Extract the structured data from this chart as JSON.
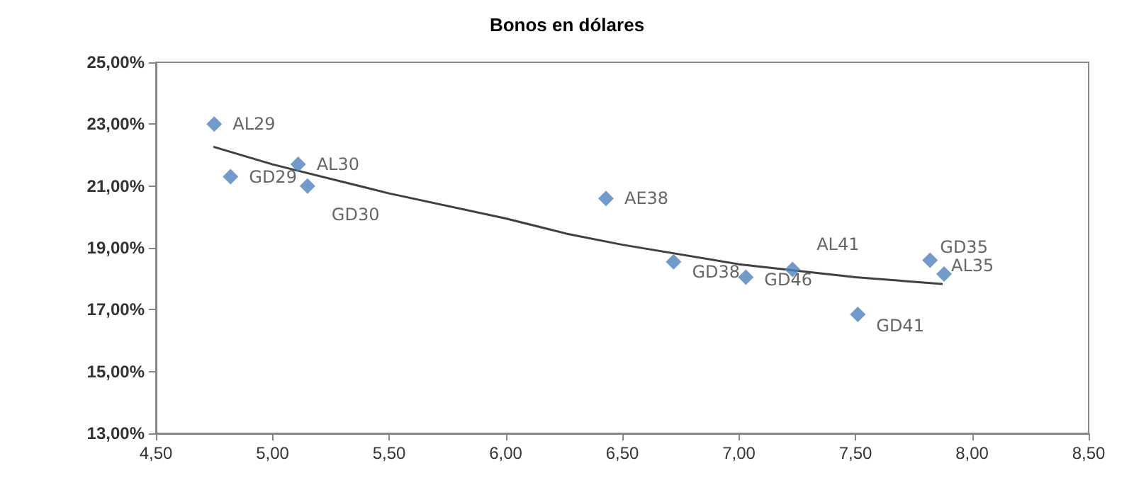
{
  "chart_data": {
    "type": "scatter",
    "title": "Bonos en dólares",
    "x": [
      4.75,
      4.82,
      5.11,
      5.15,
      6.43,
      6.72,
      7.03,
      7.23,
      7.51,
      7.82,
      7.88
    ],
    "series": [
      {
        "color": "#4f81bd",
        "marker": "diamond",
        "values": [
          23.0,
          21.3,
          21.7,
          21.0,
          20.6,
          18.55,
          18.05,
          18.3,
          16.85,
          18.6,
          18.15
        ]
      },
      {
        "type": "line",
        "color": "#404040",
        "marker": "none",
        "x": [
          4.75,
          5.0,
          5.5,
          6.0,
          6.26,
          6.5,
          7.0,
          7.5,
          7.87
        ],
        "values": [
          22.26,
          21.7,
          20.76,
          19.95,
          19.46,
          19.1,
          18.47,
          18.05,
          17.83
        ]
      }
    ],
    "annotations": [
      {
        "text": "AL29",
        "x": 4.75,
        "y": 23.0
      },
      {
        "text": "GD29",
        "x": 4.82,
        "y": 21.3
      },
      {
        "text": "AL30",
        "x": 5.11,
        "y": 21.7
      },
      {
        "text": "GD30",
        "x": 5.15,
        "y": 21.0
      },
      {
        "text": "AE38",
        "x": 6.43,
        "y": 20.6
      },
      {
        "text": "GD38",
        "x": 6.72,
        "y": 18.55
      },
      {
        "text": "GD46",
        "x": 7.03,
        "y": 18.05
      },
      {
        "text": "AL41",
        "x": 7.23,
        "y": 18.3
      },
      {
        "text": "GD41",
        "x": 7.51,
        "y": 16.85
      },
      {
        "text": "GD35",
        "x": 7.82,
        "y": 18.6
      },
      {
        "text": "AL35",
        "x": 7.88,
        "y": 18.15
      }
    ],
    "xlim": [
      4.5,
      8.5
    ],
    "xticks": [
      {
        "value": 4.5,
        "label": "4,50"
      },
      {
        "value": 5.0,
        "label": "5,00"
      },
      {
        "value": 5.5,
        "label": "5,50"
      },
      {
        "value": 6.0,
        "label": "6,00"
      },
      {
        "value": 6.5,
        "label": "6,50"
      },
      {
        "value": 7.0,
        "label": "7,00"
      },
      {
        "value": 7.5,
        "label": "7,50"
      },
      {
        "value": 8.0,
        "label": "8,00"
      },
      {
        "value": 8.5,
        "label": "8,50"
      }
    ],
    "ylim": [
      13,
      25
    ],
    "yticks": [
      {
        "value": 13,
        "label": "13,00%"
      },
      {
        "value": 15,
        "label": "15,00%"
      },
      {
        "value": 17,
        "label": "17,00%"
      },
      {
        "value": 19,
        "label": "19,00%"
      },
      {
        "value": 21,
        "label": "21,00%"
      },
      {
        "value": 23,
        "label": "23,00%"
      },
      {
        "value": 25,
        "label": "25,00%"
      }
    ],
    "grid": false
  }
}
